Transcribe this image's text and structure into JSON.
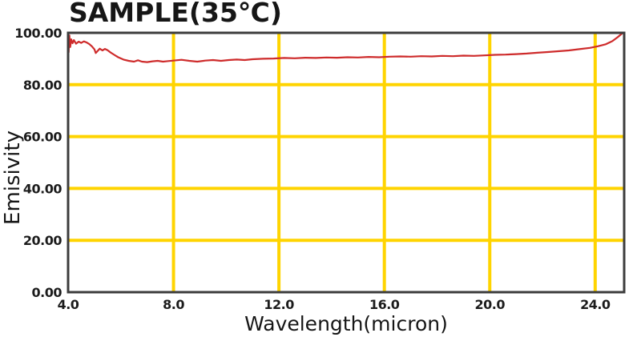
{
  "chart_data": {
    "type": "line",
    "title": "SAMPLE(35℃)",
    "xlabel": "Wavelength(micron)",
    "ylabel": "Emisivity",
    "xlim": [
      4.0,
      25.1
    ],
    "ylim": [
      0,
      100
    ],
    "x_ticks": [
      4.0,
      8.0,
      12.0,
      16.0,
      20.0,
      24.0
    ],
    "x_tick_labels": [
      "4.0",
      "8.0",
      "12.0",
      "16.0",
      "20.0",
      "24.0"
    ],
    "y_ticks": [
      0,
      20,
      40,
      60,
      80,
      100
    ],
    "y_tick_labels": [
      "0.00",
      "20.00",
      "40.00",
      "60.00",
      "80.00",
      "100.00"
    ],
    "grid": true,
    "legend": "none",
    "colors": {
      "grid": "#FFD400",
      "line": "#CE2B2B",
      "border": "#3C3C3C",
      "text": "#1c1c1c",
      "background": "#ffffff"
    },
    "series": [
      {
        "name": "emissivity",
        "points": [
          [
            4.0,
            99.5
          ],
          [
            4.02,
            92.5
          ],
          [
            4.05,
            99.0
          ],
          [
            4.08,
            94.5
          ],
          [
            4.12,
            97.5
          ],
          [
            4.17,
            96.0
          ],
          [
            4.22,
            97.2
          ],
          [
            4.3,
            95.8
          ],
          [
            4.4,
            96.6
          ],
          [
            4.5,
            96.1
          ],
          [
            4.6,
            96.7
          ],
          [
            4.7,
            96.3
          ],
          [
            4.8,
            95.7
          ],
          [
            4.9,
            94.8
          ],
          [
            5.0,
            93.6
          ],
          [
            5.05,
            92.2
          ],
          [
            5.12,
            93.0
          ],
          [
            5.2,
            93.9
          ],
          [
            5.3,
            93.2
          ],
          [
            5.4,
            93.8
          ],
          [
            5.5,
            93.3
          ],
          [
            5.6,
            92.5
          ],
          [
            5.75,
            91.5
          ],
          [
            5.9,
            90.6
          ],
          [
            6.1,
            89.7
          ],
          [
            6.3,
            89.2
          ],
          [
            6.5,
            88.9
          ],
          [
            6.65,
            89.4
          ],
          [
            6.8,
            88.9
          ],
          [
            7.0,
            88.7
          ],
          [
            7.2,
            89.0
          ],
          [
            7.4,
            89.2
          ],
          [
            7.6,
            88.9
          ],
          [
            7.8,
            89.1
          ],
          [
            8.0,
            89.3
          ],
          [
            8.3,
            89.6
          ],
          [
            8.6,
            89.2
          ],
          [
            8.9,
            88.9
          ],
          [
            9.2,
            89.3
          ],
          [
            9.5,
            89.5
          ],
          [
            9.8,
            89.2
          ],
          [
            10.1,
            89.5
          ],
          [
            10.4,
            89.7
          ],
          [
            10.7,
            89.5
          ],
          [
            11.0,
            89.8
          ],
          [
            11.4,
            90.0
          ],
          [
            11.8,
            90.1
          ],
          [
            12.2,
            90.3
          ],
          [
            12.6,
            90.2
          ],
          [
            13.0,
            90.4
          ],
          [
            13.4,
            90.3
          ],
          [
            13.8,
            90.5
          ],
          [
            14.2,
            90.4
          ],
          [
            14.6,
            90.6
          ],
          [
            15.0,
            90.5
          ],
          [
            15.4,
            90.7
          ],
          [
            15.8,
            90.6
          ],
          [
            16.2,
            90.8
          ],
          [
            16.6,
            90.9
          ],
          [
            17.0,
            90.8
          ],
          [
            17.4,
            91.0
          ],
          [
            17.8,
            90.9
          ],
          [
            18.2,
            91.1
          ],
          [
            18.6,
            91.0
          ],
          [
            19.0,
            91.2
          ],
          [
            19.4,
            91.1
          ],
          [
            19.8,
            91.3
          ],
          [
            20.2,
            91.5
          ],
          [
            20.6,
            91.6
          ],
          [
            21.0,
            91.8
          ],
          [
            21.4,
            92.0
          ],
          [
            21.8,
            92.3
          ],
          [
            22.2,
            92.6
          ],
          [
            22.6,
            92.9
          ],
          [
            23.0,
            93.2
          ],
          [
            23.4,
            93.7
          ],
          [
            23.8,
            94.2
          ],
          [
            24.1,
            94.8
          ],
          [
            24.4,
            95.6
          ],
          [
            24.65,
            96.8
          ],
          [
            24.85,
            98.3
          ],
          [
            25.05,
            100.0
          ]
        ]
      }
    ]
  }
}
